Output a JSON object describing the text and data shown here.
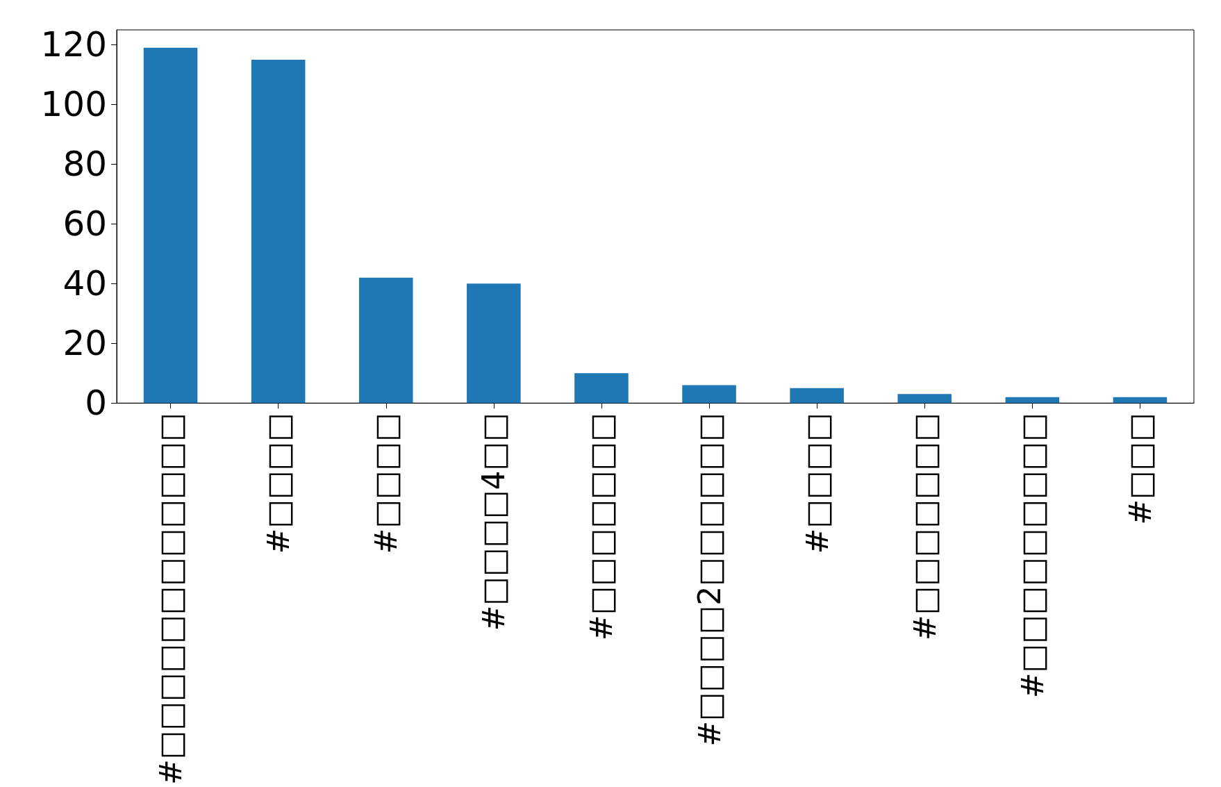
{
  "chart_data": {
    "type": "bar",
    "categories": [
      "#□□□□□□□□□□□□",
      "#□□□□",
      "#□□□□",
      "#□□□□4□□",
      "#□□□□□□□",
      "#□□□□2□□□□□□",
      "#□□□□",
      "#□□□□□□□",
      "#□□□□□□□□□",
      "#□□□"
    ],
    "values": [
      119,
      115,
      42,
      40,
      10,
      6,
      5,
      3,
      2,
      2
    ],
    "color": "#1f77b4",
    "ylim": [
      0,
      125
    ],
    "yticks": [
      0,
      20,
      40,
      60,
      80,
      100,
      120
    ],
    "grid": false
  }
}
